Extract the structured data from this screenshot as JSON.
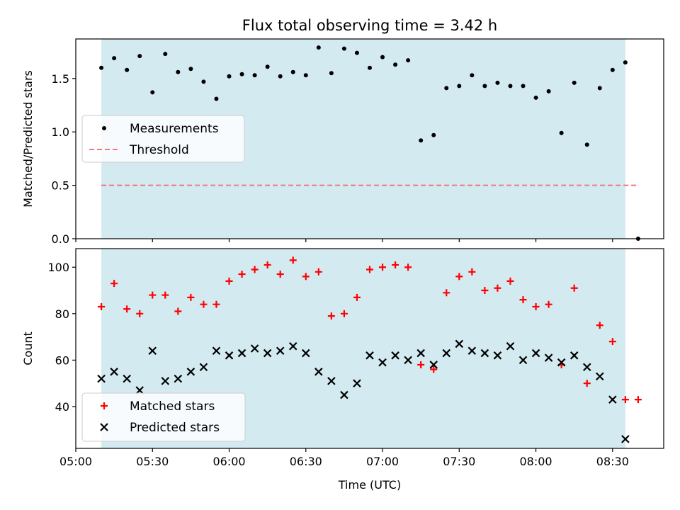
{
  "figure_title": "Flux total observing time = 3.42 h",
  "xlabel": "Time (UTC)",
  "x_ticks": [
    "05:00",
    "05:30",
    "06:00",
    "06:30",
    "07:00",
    "07:30",
    "08:00",
    "08:30"
  ],
  "colors": {
    "observing_window": "#d3eaf0",
    "measurement": "#000000",
    "threshold": "#f07a7a",
    "matched": "#ff0000",
    "predicted": "#000000"
  },
  "chart_data": [
    {
      "type": "scatter",
      "panel": "top",
      "ylabel": "Matched/Predicted stars",
      "x_unit": "time of day (UTC)",
      "xlim": [
        "05:00",
        "08:50"
      ],
      "ylim": [
        0,
        1.87
      ],
      "y_ticks": [
        "0.0",
        "0.5",
        "1.0",
        "1.5"
      ],
      "observing_window": [
        "05:10",
        "08:35"
      ],
      "legend_placement": "center-left",
      "threshold": {
        "name": "Threshold",
        "value": 0.5,
        "x_range": [
          "05:10",
          "08:40"
        ],
        "style": "dashed"
      },
      "series": [
        {
          "name": "Measurements",
          "x": [
            "05:10",
            "05:15",
            "05:20",
            "05:25",
            "05:30",
            "05:35",
            "05:40",
            "05:45",
            "05:50",
            "05:55",
            "06:00",
            "06:05",
            "06:10",
            "06:15",
            "06:20",
            "06:25",
            "06:30",
            "06:35",
            "06:40",
            "06:45",
            "06:50",
            "06:55",
            "07:00",
            "07:05",
            "07:10",
            "07:15",
            "07:20",
            "07:25",
            "07:30",
            "07:35",
            "07:40",
            "07:45",
            "07:50",
            "07:55",
            "08:00",
            "08:05",
            "08:10",
            "08:15",
            "08:20",
            "08:25",
            "08:30",
            "08:35",
            "08:40"
          ],
          "values": [
            1.6,
            1.69,
            1.58,
            1.71,
            1.37,
            1.73,
            1.56,
            1.59,
            1.47,
            1.31,
            1.52,
            1.54,
            1.53,
            1.61,
            1.52,
            1.56,
            1.53,
            1.79,
            1.55,
            1.78,
            1.74,
            1.6,
            1.7,
            1.63,
            1.67,
            0.92,
            0.97,
            1.41,
            1.43,
            1.53,
            1.43,
            1.46,
            1.43,
            1.43,
            1.32,
            1.38,
            0.99,
            1.46,
            0.88,
            1.41,
            1.58,
            1.65,
            0.0
          ]
        }
      ]
    },
    {
      "type": "scatter",
      "panel": "bottom",
      "ylabel": "Count",
      "xlabel": "Time (UTC)",
      "x_unit": "time of day (UTC)",
      "xlim": [
        "05:00",
        "08:50"
      ],
      "ylim": [
        22,
        108
      ],
      "y_ticks": [
        "40",
        "60",
        "80",
        "100"
      ],
      "observing_window": [
        "05:10",
        "08:35"
      ],
      "legend_placement": "lower-left",
      "series": [
        {
          "name": "Matched stars",
          "marker": "plus",
          "x": [
            "05:10",
            "05:15",
            "05:20",
            "05:25",
            "05:30",
            "05:35",
            "05:40",
            "05:45",
            "05:50",
            "05:55",
            "06:00",
            "06:05",
            "06:10",
            "06:15",
            "06:20",
            "06:25",
            "06:30",
            "06:35",
            "06:40",
            "06:45",
            "06:50",
            "06:55",
            "07:00",
            "07:05",
            "07:10",
            "07:15",
            "07:20",
            "07:25",
            "07:30",
            "07:35",
            "07:40",
            "07:45",
            "07:50",
            "07:55",
            "08:00",
            "08:05",
            "08:10",
            "08:15",
            "08:20",
            "08:25",
            "08:30",
            "08:35",
            "08:40"
          ],
          "values": [
            83,
            93,
            82,
            80,
            88,
            88,
            81,
            87,
            84,
            84,
            94,
            97,
            99,
            101,
            97,
            103,
            96,
            98,
            79,
            80,
            87,
            99,
            100,
            101,
            100,
            58,
            56,
            89,
            96,
            98,
            90,
            91,
            94,
            86,
            83,
            84,
            58,
            91,
            50,
            75,
            68,
            43,
            43
          ]
        },
        {
          "name": "Predicted stars",
          "marker": "x",
          "x": [
            "05:10",
            "05:15",
            "05:20",
            "05:25",
            "05:30",
            "05:35",
            "05:40",
            "05:45",
            "05:50",
            "05:55",
            "06:00",
            "06:05",
            "06:10",
            "06:15",
            "06:20",
            "06:25",
            "06:30",
            "06:35",
            "06:40",
            "06:45",
            "06:50",
            "06:55",
            "07:00",
            "07:05",
            "07:10",
            "07:15",
            "07:20",
            "07:25",
            "07:30",
            "07:35",
            "07:40",
            "07:45",
            "07:50",
            "07:55",
            "08:00",
            "08:05",
            "08:10",
            "08:15",
            "08:20",
            "08:25",
            "08:30",
            "08:35"
          ],
          "values": [
            52,
            55,
            52,
            47,
            64,
            51,
            52,
            55,
            57,
            64,
            62,
            63,
            65,
            63,
            64,
            66,
            63,
            55,
            51,
            45,
            50,
            62,
            59,
            62,
            60,
            63,
            58,
            63,
            67,
            64,
            63,
            62,
            66,
            60,
            63,
            61,
            59,
            62,
            57,
            53,
            43,
            26
          ]
        }
      ]
    }
  ]
}
